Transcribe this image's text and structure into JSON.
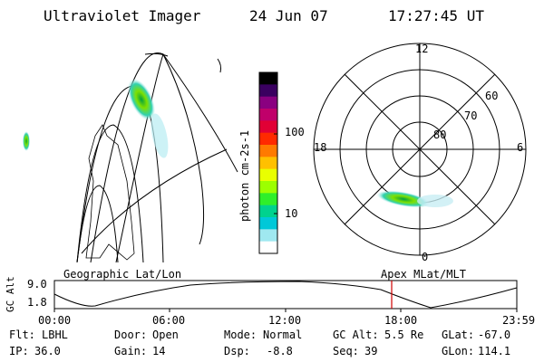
{
  "header": {
    "instrument": "Ultraviolet Imager",
    "date": "24 Jun 07",
    "time": "17:27:45 UT"
  },
  "colorbar": {
    "unit_label": "photon cm-2s-1",
    "tick_labels": [
      "100",
      "10"
    ],
    "colors": [
      "#000000",
      "#3a0060",
      "#8a0080",
      "#c0006a",
      "#e10035",
      "#ff2a00",
      "#ff7a00",
      "#ffc000",
      "#e9ff00",
      "#9cff00",
      "#2fef2a",
      "#00d28e",
      "#00c8d8",
      "#9fe8f0",
      "#ffffff"
    ]
  },
  "polar_plot": {
    "hour_labels": [
      "12",
      "18",
      "6",
      "0"
    ],
    "lat_labels": [
      "60",
      "70",
      "80"
    ]
  },
  "timeline": {
    "left_label": "Geographic Lat/Lon",
    "right_label": "Apex MLat/MLT",
    "axis_label": "GC Alt",
    "y_labels": [
      "9.0",
      "1.8"
    ],
    "x_labels": [
      "00:00",
      "06:00",
      "12:00",
      "18:00",
      "23:59"
    ],
    "marker_color": "#d00000"
  },
  "status": {
    "row1": [
      {
        "label": "Flt:",
        "value": "LBHL"
      },
      {
        "label": "Door:",
        "value": "Open"
      },
      {
        "label": "Mode:",
        "value": "Normal"
      },
      {
        "label": "GC Alt:",
        "value": "5.5 Re"
      },
      {
        "label": "GLat:",
        "value": "-67.0"
      }
    ],
    "row2": [
      {
        "label": "IP:",
        "value": "36.0"
      },
      {
        "label": "Gain:",
        "value": "14"
      },
      {
        "label": "Dsp:",
        "value": "-8.8"
      },
      {
        "label": "Seq:",
        "value": "39"
      },
      {
        "label": "GLon:",
        "value": "114.1"
      }
    ]
  }
}
